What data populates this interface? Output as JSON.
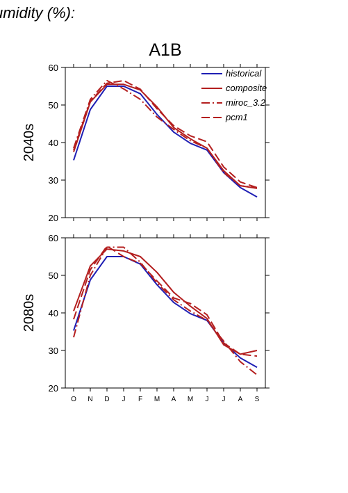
{
  "page_title": "umidity (%):",
  "chart_data": [
    {
      "type": "line",
      "title": "A1B",
      "row_label": "2040s",
      "categories": [
        "O",
        "N",
        "D",
        "J",
        "F",
        "M",
        "A",
        "M",
        "J",
        "J",
        "A",
        "S"
      ],
      "ylim": [
        20,
        60
      ],
      "yticks": [
        20,
        30,
        40,
        50,
        60
      ],
      "legend_position": "top-right",
      "series": [
        {
          "name": "historical",
          "color": "#1f1fb4",
          "dash": "solid",
          "values": [
            35.3,
            48.8,
            55.0,
            55.0,
            53.0,
            47.5,
            42.8,
            39.8,
            38.0,
            32.0,
            28.0,
            25.5
          ]
        },
        {
          "name": "composite",
          "color": "#b41f1f",
          "dash": "solid",
          "values": [
            37.5,
            50.8,
            55.5,
            55.5,
            54.0,
            49.5,
            44.0,
            41.0,
            38.5,
            32.5,
            28.5,
            27.8
          ]
        },
        {
          "name": "miroc_3.2",
          "color": "#b41f1f",
          "dash": "dashdot",
          "values": [
            38.5,
            51.5,
            56.5,
            54.3,
            51.5,
            46.8,
            43.5,
            40.5,
            38.5,
            32.0,
            28.5,
            28.0
          ]
        },
        {
          "name": "pcm1",
          "color": "#b41f1f",
          "dash": "longdash",
          "values": [
            38.0,
            51.0,
            55.8,
            56.5,
            54.2,
            49.0,
            44.5,
            41.8,
            40.2,
            33.5,
            29.5,
            28.0
          ]
        }
      ]
    },
    {
      "type": "line",
      "title": "",
      "row_label": "2080s",
      "categories": [
        "O",
        "N",
        "D",
        "J",
        "F",
        "M",
        "A",
        "M",
        "J",
        "J",
        "A",
        "S"
      ],
      "ylim": [
        20,
        60
      ],
      "yticks": [
        20,
        30,
        40,
        50,
        60
      ],
      "series": [
        {
          "name": "historical",
          "color": "#1f1fb4",
          "dash": "solid",
          "values": [
            35.3,
            48.8,
            55.0,
            55.0,
            53.0,
            47.5,
            42.8,
            39.8,
            38.0,
            32.0,
            28.0,
            25.5
          ]
        },
        {
          "name": "composite",
          "color": "#b41f1f",
          "dash": "solid",
          "values": [
            40.5,
            52.5,
            57.0,
            56.5,
            55.0,
            50.8,
            45.5,
            41.8,
            38.5,
            31.5,
            29.0,
            30.0
          ]
        },
        {
          "name": "miroc_3.2",
          "color": "#b41f1f",
          "dash": "dashdot",
          "values": [
            33.5,
            50.0,
            57.5,
            57.5,
            53.5,
            48.0,
            43.5,
            40.5,
            38.0,
            32.5,
            27.0,
            23.5
          ]
        },
        {
          "name": "pcm1",
          "color": "#b41f1f",
          "dash": "longdash",
          "values": [
            38.3,
            51.5,
            57.8,
            55.0,
            53.2,
            48.5,
            44.0,
            42.5,
            39.5,
            32.0,
            29.0,
            28.5
          ]
        }
      ]
    }
  ]
}
